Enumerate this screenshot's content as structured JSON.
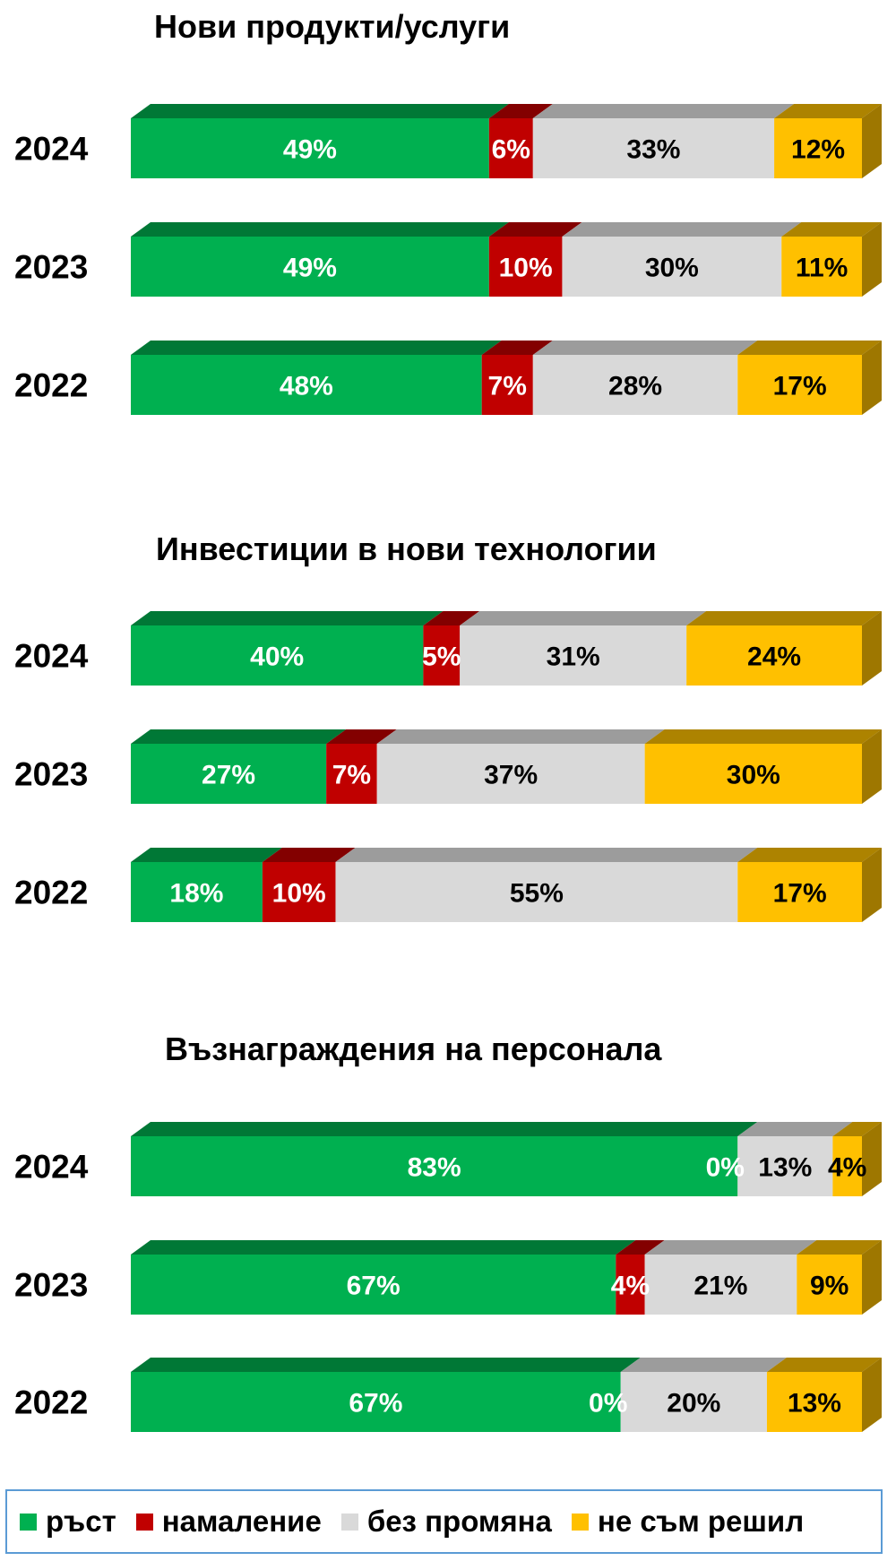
{
  "colors": {
    "growth": "#00b050",
    "decrease": "#c00000",
    "nochange": "#d9d9d9",
    "undecided": "#ffc000"
  },
  "legend": [
    {
      "key": "growth",
      "label": "ръст"
    },
    {
      "key": "decrease",
      "label": "намаление"
    },
    {
      "key": "nochange",
      "label": "без промяна"
    },
    {
      "key": "undecided",
      "label": "не съм решил"
    }
  ],
  "chart_data": [
    {
      "type": "bar",
      "orientation": "horizontal",
      "stacked": true,
      "title": "Нови продукти/услуги",
      "categories": [
        "2024",
        "2023",
        "2022"
      ],
      "series": [
        {
          "name": "ръст",
          "values": [
            49,
            49,
            48
          ]
        },
        {
          "name": "намаление",
          "values": [
            6,
            10,
            7
          ]
        },
        {
          "name": "без промяна",
          "values": [
            33,
            30,
            28
          ]
        },
        {
          "name": "не съм решил",
          "values": [
            12,
            11,
            17
          ]
        }
      ]
    },
    {
      "type": "bar",
      "orientation": "horizontal",
      "stacked": true,
      "title": "Инвестиции в нови технологии",
      "categories": [
        "2024",
        "2023",
        "2022"
      ],
      "series": [
        {
          "name": "ръст",
          "values": [
            40,
            27,
            18
          ]
        },
        {
          "name": "намаление",
          "values": [
            5,
            7,
            10
          ]
        },
        {
          "name": "без промяна",
          "values": [
            31,
            37,
            55
          ]
        },
        {
          "name": "не съм решил",
          "values": [
            24,
            30,
            17
          ]
        }
      ]
    },
    {
      "type": "bar",
      "orientation": "horizontal",
      "stacked": true,
      "title": "Възнаграждения на персонала",
      "categories": [
        "2024",
        "2023",
        "2022"
      ],
      "series": [
        {
          "name": "ръст",
          "values": [
            83,
            67,
            67
          ]
        },
        {
          "name": "намаление",
          "values": [
            0,
            4,
            0
          ]
        },
        {
          "name": "без промяна",
          "values": [
            13,
            21,
            20
          ]
        },
        {
          "name": "не съм решил",
          "values": [
            4,
            9,
            13
          ]
        }
      ]
    }
  ]
}
